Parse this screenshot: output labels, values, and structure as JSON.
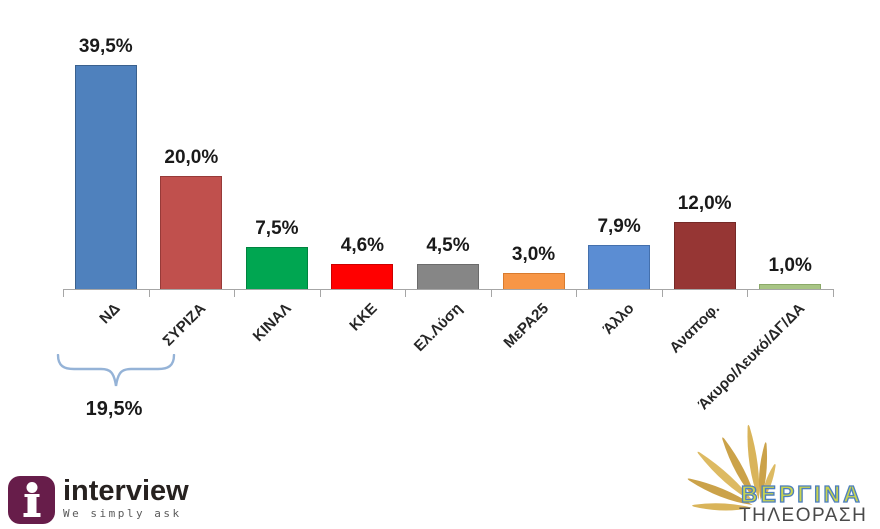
{
  "chart_data": {
    "type": "bar",
    "title": "",
    "categories": [
      "ΝΔ",
      "ΣΥΡΙΖΑ",
      "ΚΙΝΑΛ",
      "ΚΚΕ",
      "Ελ.Λύση",
      "ΜεΡΑ25",
      "Άλλο",
      "Αναποφ.",
      "Άκυρο/Λευκό/ΔΓ/ΔΑ"
    ],
    "values": [
      39.5,
      20.0,
      7.5,
      4.6,
      4.5,
      3.0,
      7.9,
      12.0,
      1.0
    ],
    "value_labels": [
      "39,5%",
      "20,0%",
      "7,5%",
      "4,6%",
      "4,5%",
      "3,0%",
      "7,9%",
      "12,0%",
      "1,0%"
    ],
    "bar_colors": [
      "#4F81BD",
      "#C0504D",
      "#00A651",
      "#FF0000",
      "#868686",
      "#F79646",
      "#5B8DD3",
      "#963634",
      "#A8C585"
    ],
    "bar_border_colors": [
      "#3A618E",
      "#973A38",
      "#00833F",
      "#CC0000",
      "#6B6B6B",
      "#D97B2D",
      "#4470AD",
      "#752927",
      "#8BA968"
    ],
    "ylim": [
      0,
      40
    ],
    "grid": false,
    "legend": false,
    "decimal_separator": ",",
    "annotation": {
      "label": "19,5%",
      "from_category": "ΝΔ",
      "to_category": "ΣΥΡΙΖΑ",
      "brace_color": "#95B3D7"
    }
  },
  "branding": {
    "interview": {
      "name": "interview",
      "tagline": "We simply ask",
      "icon_letter": "i",
      "icon_color": "#671D4A"
    },
    "vergina": {
      "title": "ΒΕΡΓΙΝΑ",
      "subtitle": "ΤΗΛΕΟΡΑΣΗ",
      "sun_color": "#D9B45A"
    }
  },
  "colors": {
    "axis": "#A6A6A6",
    "value_label_text": "#1A1A1A",
    "background": "#FFFFFF"
  }
}
